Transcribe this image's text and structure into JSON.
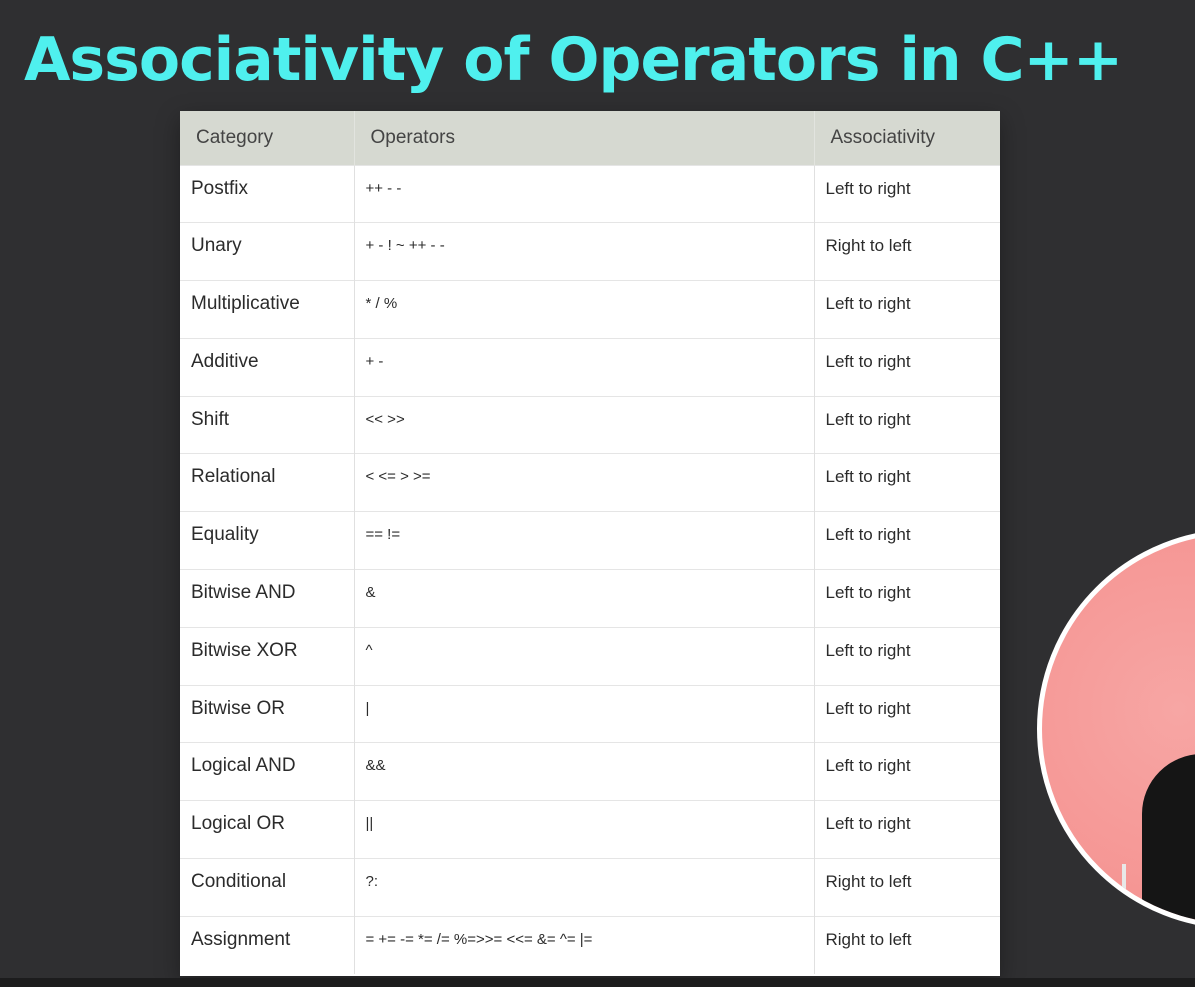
{
  "title": "Associativity of Operators in C++",
  "table": {
    "headers": [
      "Category",
      "Operators",
      "Associativity"
    ],
    "rows": [
      {
        "category": "Postfix",
        "operators": "++ - -",
        "associativity": "Left to right"
      },
      {
        "category": "Unary",
        "operators": "+ - ! ~ ++ - -",
        "associativity": "Right to left"
      },
      {
        "category": "Multiplicative",
        "operators": "* / %",
        "associativity": "Left to right"
      },
      {
        "category": "Additive",
        "operators": "+ -",
        "associativity": "Left to right"
      },
      {
        "category": "Shift",
        "operators": "<< >>",
        "associativity": "Left to right"
      },
      {
        "category": "Relational",
        "operators": "< <= > >=",
        "associativity": "Left to right"
      },
      {
        "category": "Equality",
        "operators": "== !=",
        "associativity": "Left to right"
      },
      {
        "category": "Bitwise AND",
        "operators": "&",
        "associativity": "Left to right"
      },
      {
        "category": "Bitwise XOR",
        "operators": "^",
        "associativity": "Left to right"
      },
      {
        "category": "Bitwise OR",
        "operators": "|",
        "associativity": "Left to right"
      },
      {
        "category": "Logical AND",
        "operators": "&&",
        "associativity": "Left to right"
      },
      {
        "category": "Logical OR",
        "operators": "||",
        "associativity": "Left to right"
      },
      {
        "category": "Conditional",
        "operators": "?:",
        "associativity": "Right to left"
      },
      {
        "category": "Assignment",
        "operators": "= += -= *= /= %=>>= <<= &= ^= |=",
        "associativity": "Right to left"
      }
    ]
  },
  "colors": {
    "background": "#2f2f31",
    "title": "#4ff0ee",
    "header_bg": "#d6d9d1",
    "avatar_bg": "#f59593"
  }
}
